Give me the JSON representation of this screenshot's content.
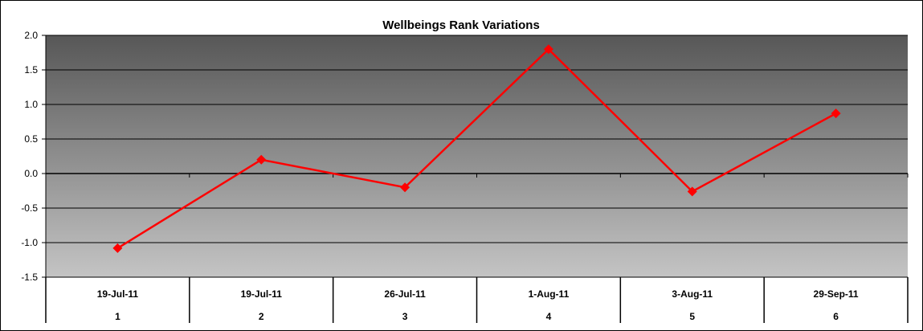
{
  "chart_data": {
    "type": "line",
    "title": "Wellbeings Rank Variations",
    "xlabel": "",
    "ylabel": "",
    "ylim": [
      -1.5,
      2.0
    ],
    "y_ticks": [
      "2.0",
      "1.5",
      "1.0",
      "0.5",
      "0.0",
      "-0.5",
      "-1.0",
      "-1.5"
    ],
    "y_tick_values": [
      2.0,
      1.5,
      1.0,
      0.5,
      0.0,
      -0.5,
      -1.0,
      -1.5
    ],
    "categories": [
      {
        "date": "19-Jul-11",
        "index": "1"
      },
      {
        "date": "19-Jul-11",
        "index": "2"
      },
      {
        "date": "26-Jul-11",
        "index": "3"
      },
      {
        "date": "1-Aug-11",
        "index": "4"
      },
      {
        "date": "3-Aug-11",
        "index": "5"
      },
      {
        "date": "29-Sep-11",
        "index": "6"
      }
    ],
    "series": [
      {
        "values": [
          -1.08,
          0.2,
          -0.2,
          1.8,
          -0.26,
          0.87
        ]
      }
    ],
    "grid": true,
    "legend": "none",
    "colors": {
      "line": "#ff0000",
      "marker": "#ff0000",
      "plot_top": "#575757",
      "plot_bottom": "#c4c4c4",
      "gridline": "#000000"
    }
  }
}
